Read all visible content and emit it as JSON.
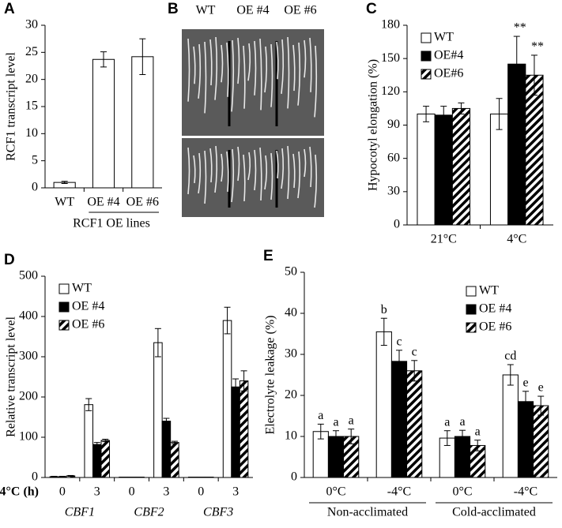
{
  "chart_data": [
    {
      "type": "bar",
      "panel": "A",
      "ylabel": "RCF1 transcript level",
      "xlabel": "RCF1 OE lines",
      "categories": [
        "WT",
        "OE #4",
        "OE #6"
      ],
      "values": [
        1,
        23.7,
        24.2
      ],
      "errors": [
        0.2,
        1.4,
        3.3
      ],
      "color": "#ffffff",
      "ylim": [
        0,
        30
      ],
      "yticks": [
        0,
        5,
        10,
        15,
        20,
        25,
        30
      ]
    },
    {
      "type": "image",
      "panel": "B",
      "labels": [
        "WT",
        "OE #4",
        "OE #6"
      ]
    },
    {
      "type": "bar",
      "panel": "C",
      "ylabel": "Hypocotyl elongation (%)",
      "categories": [
        "21°C",
        "4°C"
      ],
      "series": [
        {
          "name": "WT",
          "color": "#ffffff",
          "values": [
            100,
            100
          ],
          "errors": [
            7,
            14
          ]
        },
        {
          "name": "OE#4",
          "color": "#000000",
          "values": [
            99,
            145
          ],
          "errors": [
            8,
            25
          ],
          "annotations": [
            null,
            "**"
          ]
        },
        {
          "name": "OE#6",
          "color": "#000000",
          "pattern": "hatch",
          "values": [
            105,
            135
          ],
          "errors": [
            5,
            18
          ],
          "annotations": [
            null,
            "**"
          ]
        }
      ],
      "ylim": [
        0,
        180
      ],
      "yticks": [
        0,
        30,
        60,
        90,
        120,
        150,
        180
      ],
      "legend": "upper left"
    },
    {
      "type": "bar",
      "panel": "D",
      "ylabel": "Relative transcript level",
      "xlabel": "4°C (h)",
      "categories": [
        "0",
        "3",
        "0",
        "3",
        "0",
        "3"
      ],
      "groups": [
        "CBF1",
        "CBF2",
        "CBF3"
      ],
      "series": [
        {
          "name": "WT",
          "color": "#ffffff",
          "values": [
            2,
            181,
            1,
            335,
            1,
            390
          ],
          "errors": [
            1,
            15,
            0,
            35,
            0,
            33
          ]
        },
        {
          "name": "OE #4",
          "color": "#000000",
          "values": [
            2,
            82,
            1,
            140,
            1,
            225
          ],
          "errors": [
            1,
            5,
            0,
            7,
            0,
            20
          ]
        },
        {
          "name": "OE #6",
          "color": "#000000",
          "pattern": "hatch",
          "values": [
            4,
            92,
            1,
            87,
            1,
            240
          ],
          "errors": [
            1,
            3,
            0,
            3,
            0,
            25
          ]
        }
      ],
      "ylim": [
        0,
        500
      ],
      "yticks": [
        0,
        100,
        200,
        300,
        400,
        500
      ],
      "legend": "upper left"
    },
    {
      "type": "bar",
      "panel": "E",
      "ylabel": "Electrolyte leakage (%)",
      "categories": [
        "0°C",
        "-4°C",
        "0°C",
        "-4°C"
      ],
      "groups": [
        "Non-acclimated",
        "Cold-acclimated"
      ],
      "series": [
        {
          "name": "WT",
          "color": "#ffffff",
          "values": [
            11.2,
            35.5,
            9.6,
            25
          ],
          "errors": [
            1.8,
            3.3,
            1.8,
            2.5
          ],
          "annotations": [
            "a",
            "b",
            "a",
            "cd"
          ]
        },
        {
          "name": "OE #4",
          "color": "#000000",
          "values": [
            10,
            28.3,
            10,
            18.5
          ],
          "errors": [
            1.4,
            2.7,
            1.5,
            2.5
          ],
          "annotations": [
            "a",
            "c",
            "a",
            "e"
          ]
        },
        {
          "name": "OE #6",
          "color": "#000000",
          "pattern": "hatch",
          "values": [
            10,
            26,
            7.8,
            17.5
          ],
          "errors": [
            1.8,
            2.5,
            1.3,
            2.3
          ],
          "annotations": [
            "a",
            "c",
            "a",
            "e"
          ]
        }
      ],
      "ylim": [
        0,
        50
      ],
      "yticks": [
        0,
        10,
        20,
        30,
        40,
        50
      ],
      "legend": "upper right"
    }
  ]
}
